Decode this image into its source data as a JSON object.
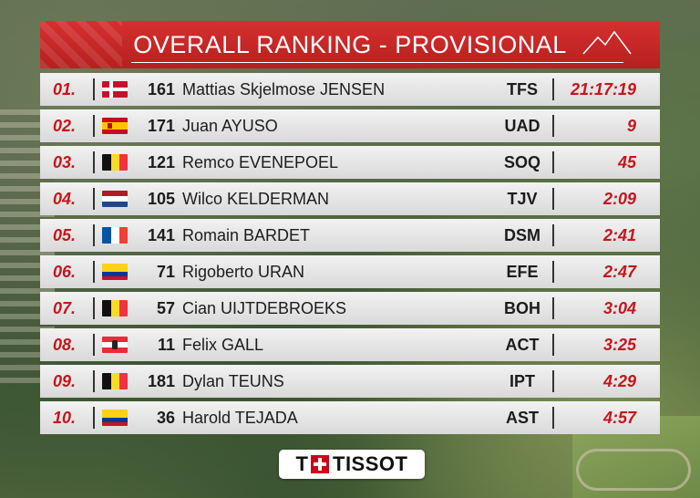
{
  "header": {
    "title": "OVERALL RANKING - PROVISIONAL",
    "icon": "mountain-icon"
  },
  "rows": [
    {
      "pos": "01.",
      "flag": "denmark",
      "bib": "161",
      "name": "Mattias Skjelmose JENSEN",
      "team": "TFS",
      "time": "21:17:19"
    },
    {
      "pos": "02.",
      "flag": "spain",
      "bib": "171",
      "name": "Juan AYUSO",
      "team": "UAD",
      "time": "9"
    },
    {
      "pos": "03.",
      "flag": "belgium",
      "bib": "121",
      "name": "Remco EVENEPOEL",
      "team": "SOQ",
      "time": "45"
    },
    {
      "pos": "04.",
      "flag": "netherlands",
      "bib": "105",
      "name": "Wilco KELDERMAN",
      "team": "TJV",
      "time": "2:09"
    },
    {
      "pos": "05.",
      "flag": "france",
      "bib": "141",
      "name": "Romain BARDET",
      "team": "DSM",
      "time": "2:41"
    },
    {
      "pos": "06.",
      "flag": "colombia",
      "bib": "71",
      "name": "Rigoberto URAN",
      "team": "EFE",
      "time": "2:47"
    },
    {
      "pos": "07.",
      "flag": "belgium",
      "bib": "57",
      "name": "Cian UIJTDEBROEKS",
      "team": "BOH",
      "time": "3:04"
    },
    {
      "pos": "08.",
      "flag": "austria",
      "bib": "11",
      "name": "Felix GALL",
      "team": "ACT",
      "time": "3:25"
    },
    {
      "pos": "09.",
      "flag": "belgium",
      "bib": "181",
      "name": "Dylan TEUNS",
      "team": "IPT",
      "time": "4:29"
    },
    {
      "pos": "10.",
      "flag": "colombia",
      "bib": "36",
      "name": "Harold TEJADA",
      "team": "AST",
      "time": "4:57"
    }
  ],
  "sponsor": {
    "t": "T",
    "name": "TISSOT"
  },
  "colors": {
    "accent": "#c4161c",
    "header": "#c62828",
    "row": "#e6e6e6"
  }
}
